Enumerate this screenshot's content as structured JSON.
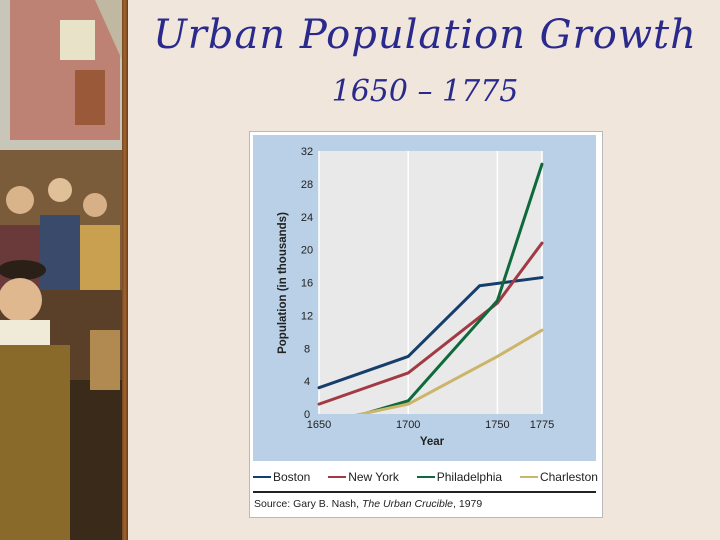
{
  "slide": {
    "title": "Urban Population Growth",
    "subtitle": "1650 – 1775"
  },
  "colors": {
    "Boston": "#163e6b",
    "New York": "#a23a44",
    "Philadelphia": "#0e6a3a",
    "Charleston": "#cbb56a",
    "plot_bg": "#b9d0e6",
    "grid": "#ffffff"
  },
  "chart_data": {
    "type": "line",
    "title": "",
    "xlabel": "Year",
    "ylabel": "Population (in thousands)",
    "x": [
      1650,
      1700,
      1750,
      1775
    ],
    "xticks": [
      "1650",
      "1700",
      "1750",
      "1775"
    ],
    "yticks": [
      "0",
      "4",
      "8",
      "12",
      "16",
      "20",
      "24",
      "28",
      "32"
    ],
    "ylim": [
      0,
      32
    ],
    "xlim": [
      1650,
      1775
    ],
    "series": [
      {
        "name": "Boston",
        "points": [
          [
            1650,
            3.2
          ],
          [
            1700,
            7.0
          ],
          [
            1740,
            15.6
          ],
          [
            1775,
            16.6
          ]
        ]
      },
      {
        "name": "New York",
        "points": [
          [
            1650,
            1.2
          ],
          [
            1700,
            5.0
          ],
          [
            1750,
            13.5
          ],
          [
            1775,
            20.8
          ]
        ]
      },
      {
        "name": "Philadelphia",
        "points": [
          [
            1667,
            -0.5
          ],
          [
            1700,
            1.6
          ],
          [
            1750,
            13.8
          ],
          [
            1775,
            30.4
          ]
        ]
      },
      {
        "name": "Charleston",
        "points": [
          [
            1663,
            -0.5
          ],
          [
            1700,
            1.2
          ],
          [
            1750,
            7.0
          ],
          [
            1775,
            10.2
          ]
        ]
      }
    ],
    "legend": [
      "Boston",
      "New York",
      "Philadelphia",
      "Charleston"
    ],
    "legend_position": "bottom",
    "grid": true
  },
  "source": {
    "prefix": "Source: Gary B. Nash, ",
    "work": "The Urban Crucible",
    "suffix": ", 1979"
  }
}
